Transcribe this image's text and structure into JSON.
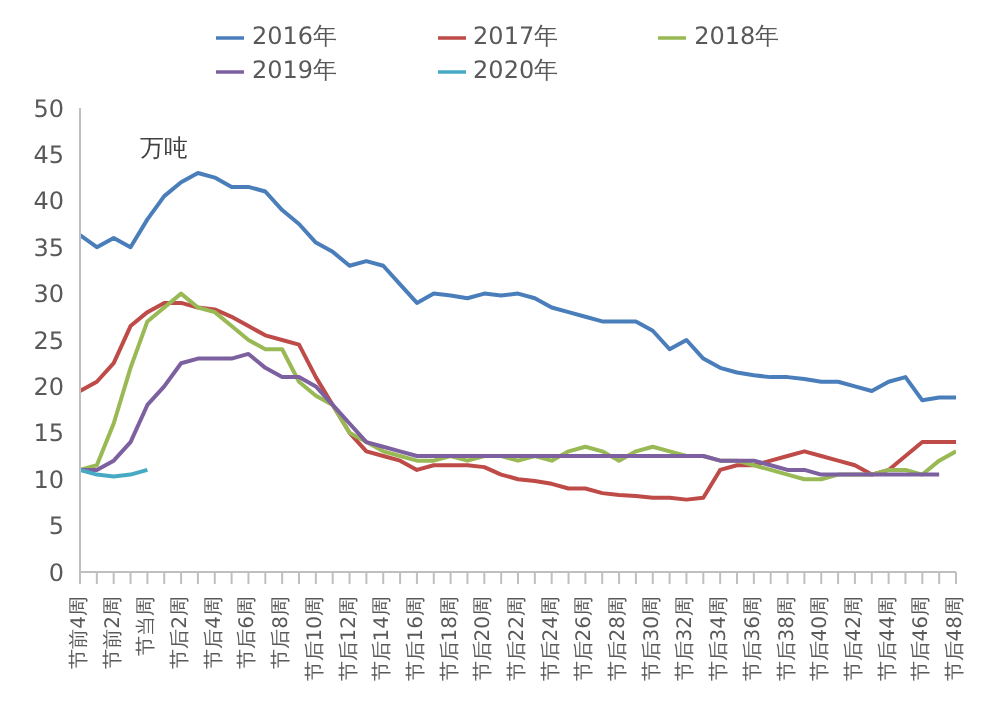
{
  "chart_data": {
    "type": "line",
    "ylabel": "万吨",
    "categories": [
      "节前4周",
      null,
      "节前2周",
      null,
      "节当周",
      null,
      "节后2周",
      null,
      "节后4周",
      null,
      "节后6周",
      null,
      "节后8周",
      null,
      "节后10周",
      null,
      "节后12周",
      null,
      "节后14周",
      null,
      "节后16周",
      null,
      "节后18周",
      null,
      "节后20周",
      null,
      "节后22周",
      null,
      "节后24周",
      null,
      "节后26周",
      null,
      "节后28周",
      null,
      "节后30周",
      null,
      "节后32周",
      null,
      "节后34周",
      null,
      "节后36周",
      null,
      "节后38周",
      null,
      "节后40周",
      null,
      "节后42周",
      null,
      "节后44周",
      null,
      "节后46周",
      null,
      "节后48周"
    ],
    "series": [
      {
        "name": "2016年",
        "color": "#4a7ebb",
        "values": [
          36.3,
          35,
          36,
          35,
          38,
          40.5,
          42,
          43,
          42.5,
          41.5,
          41.5,
          41,
          39,
          37.5,
          35.5,
          34.5,
          33,
          33.5,
          33,
          31,
          29,
          30,
          29.8,
          29.5,
          30,
          29.8,
          30,
          29.5,
          28.5,
          28,
          27.5,
          27,
          27,
          27,
          26,
          24,
          25,
          23,
          22,
          21.5,
          21.2,
          21,
          21,
          20.8,
          20.5,
          20.5,
          20,
          19.5,
          20.5,
          21,
          18.5,
          18.8,
          18.8
        ]
      },
      {
        "name": "2017年",
        "color": "#be4b48",
        "values": [
          19.5,
          20.5,
          22.5,
          26.5,
          28,
          29,
          29,
          28.5,
          28.3,
          27.5,
          26.5,
          25.5,
          25,
          24.5,
          21,
          18,
          15,
          13,
          12.5,
          12,
          11,
          11.5,
          11.5,
          11.5,
          11.3,
          10.5,
          10,
          9.8,
          9.5,
          9,
          9,
          8.5,
          8.3,
          8.2,
          8,
          8,
          7.8,
          8,
          11,
          11.5,
          11.5,
          12,
          12.5,
          13,
          12.5,
          12,
          11.5,
          10.5,
          11,
          12.5,
          14,
          14,
          14
        ]
      },
      {
        "name": "2018年",
        "color": "#98b954",
        "values": [
          11,
          11.5,
          16,
          22,
          27,
          28.5,
          30,
          28.5,
          28,
          26.5,
          25,
          24,
          24,
          20.5,
          19,
          18,
          15,
          14,
          13,
          12.5,
          12,
          12,
          12.5,
          12,
          12.5,
          12.5,
          12,
          12.5,
          12,
          13,
          13.5,
          13,
          12,
          13,
          13.5,
          13,
          12.5,
          12.5,
          12,
          12,
          11.5,
          11,
          10.5,
          10,
          10,
          10.5,
          10.5,
          10.5,
          11,
          11,
          10.5,
          12,
          13
        ]
      },
      {
        "name": "2019年",
        "color": "#7d60a0",
        "values": [
          11,
          11,
          12,
          14,
          18,
          20,
          22.5,
          23,
          23,
          23,
          23.5,
          22,
          21,
          21,
          20,
          18,
          16,
          14,
          13.5,
          13,
          12.5,
          12.5,
          12.5,
          12.5,
          12.5,
          12.5,
          12.5,
          12.5,
          12.5,
          12.5,
          12.5,
          12.5,
          12.5,
          12.5,
          12.5,
          12.5,
          12.5,
          12.5,
          12,
          12,
          12,
          11.5,
          11,
          11,
          10.5,
          10.5,
          10.5,
          10.5,
          10.5,
          10.5,
          10.5,
          10.5,
          null
        ]
      },
      {
        "name": "2020年",
        "color": "#46aac5",
        "values": [
          11,
          10.5,
          10.3,
          10.5,
          11,
          null,
          null,
          null,
          null,
          null,
          null,
          null,
          null,
          null,
          null,
          null,
          null,
          null,
          null,
          null,
          null,
          null,
          null,
          null,
          null,
          null,
          null,
          null,
          null,
          null,
          null,
          null,
          null,
          null,
          null,
          null,
          null,
          null,
          null,
          null,
          null,
          null,
          null,
          null,
          null,
          null,
          null,
          null,
          null,
          null,
          null,
          null,
          null
        ]
      }
    ],
    "ylim": [
      0,
      50
    ],
    "yticks": [
      0,
      5,
      10,
      15,
      20,
      25,
      30,
      35,
      40,
      45,
      50
    ],
    "legend": "top",
    "marker": "none",
    "line_style": "solid"
  }
}
